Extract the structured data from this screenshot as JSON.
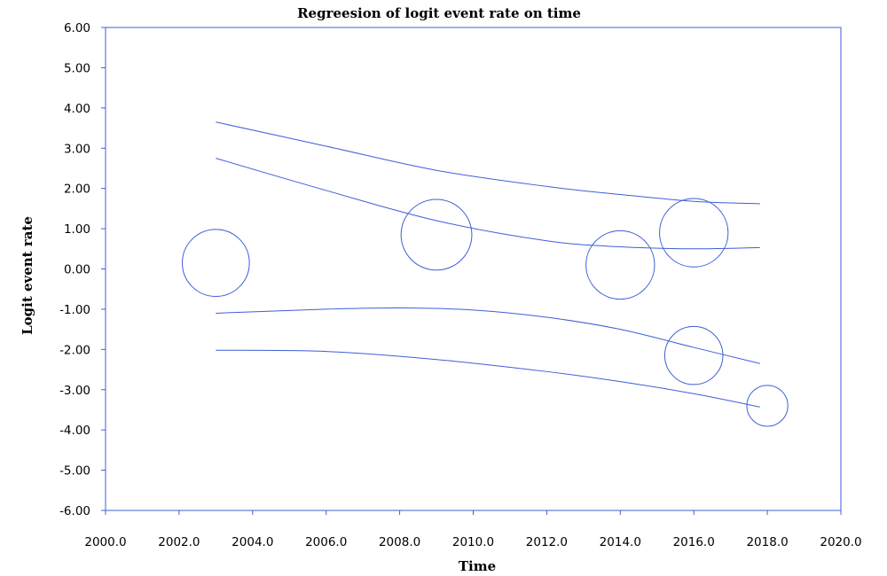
{
  "chart_data": {
    "type": "scatter",
    "title": "Regreesion of logit event rate on time",
    "xlabel": "Time",
    "ylabel": "Logit event rate",
    "xlim": [
      2000,
      2020
    ],
    "ylim": [
      -6,
      6
    ],
    "x_ticks": [
      "2000.0",
      "2002.0",
      "2004.0",
      "2006.0",
      "2008.0",
      "2010.0",
      "2012.0",
      "2014.0",
      "2016.0",
      "2018.0",
      "2020.0"
    ],
    "y_ticks": [
      "6.00",
      "5.00",
      "4.00",
      "3.00",
      "2.00",
      "1.00",
      "0.00",
      "-1.00",
      "-2.00",
      "-3.00",
      "-4.00",
      "-5.00",
      "-6.00"
    ],
    "grid": false,
    "line_color": "#3d5fd6",
    "points": [
      {
        "x": 2003,
        "y": 0.15,
        "weight": 0.9
      },
      {
        "x": 2009,
        "y": 0.85,
        "weight": 0.95
      },
      {
        "x": 2014,
        "y": 0.1,
        "weight": 0.92
      },
      {
        "x": 2016,
        "y": 0.9,
        "weight": 0.92
      },
      {
        "x": 2016,
        "y": -2.15,
        "weight": 0.78
      },
      {
        "x": 2018,
        "y": -3.4,
        "weight": 0.55
      }
    ],
    "series": [
      {
        "x": [
          2003,
          2006,
          2009,
          2012,
          2014,
          2016,
          2017.8
        ],
        "y": [
          3.65,
          3.05,
          2.45,
          2.05,
          1.85,
          1.68,
          1.62
        ]
      },
      {
        "x": [
          2003,
          2006,
          2009,
          2012,
          2014,
          2016,
          2017.8
        ],
        "y": [
          2.75,
          1.95,
          1.2,
          0.7,
          0.55,
          0.5,
          0.53
        ]
      },
      {
        "x": [
          2003,
          2006,
          2008,
          2010,
          2012,
          2014,
          2016,
          2017.8
        ],
        "y": [
          -1.1,
          -1.0,
          -0.97,
          -1.02,
          -1.2,
          -1.5,
          -1.95,
          -2.35
        ]
      },
      {
        "x": [
          2003,
          2006,
          2009,
          2012,
          2014,
          2016,
          2017.8
        ],
        "y": [
          -2.02,
          -2.05,
          -2.25,
          -2.55,
          -2.8,
          -3.1,
          -3.43
        ]
      }
    ]
  }
}
